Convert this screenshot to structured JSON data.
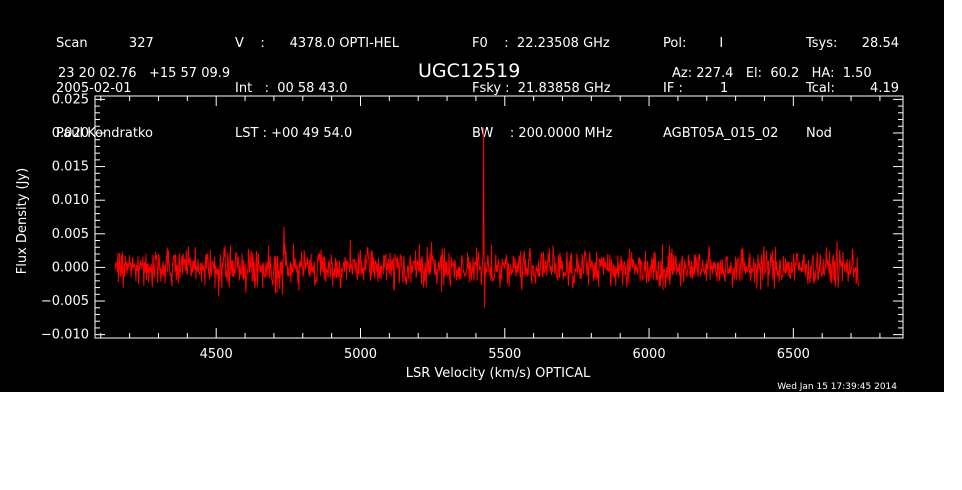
{
  "header": {
    "col1": [
      "Scan          327",
      "2005-02-01",
      "Paul Kondratko"
    ],
    "col2": [
      "V    :      4378.0 OPTI-HEL",
      "Int   :  00 58 43.0",
      "LST : +00 49 54.0"
    ],
    "col3": [
      "F0    :  22.23508 GHz",
      "Fsky :  21.83858 GHz",
      "BW    : 200.0000 MHz"
    ],
    "col4": [
      "Pol:        I",
      "IF :         1",
      "AGBT05A_015_02"
    ],
    "col5": [
      "Tsys:",
      "Tcal:",
      "Nod"
    ],
    "col6": [
      "28.54",
      "4.19",
      ""
    ],
    "coords": "23 20 02.76   +15 57 09.9",
    "source": "UGC12519",
    "pointing": "Az: 227.4   El:  60.2   HA:  1.50",
    "timestamp": "Wed Jan 15 17:39:45 2014"
  },
  "chart_data": {
    "type": "line",
    "xlabel": "LSR Velocity (km/s) OPTICAL",
    "ylabel": "Flux Density (Jy)",
    "xlim": [
      4080,
      6880
    ],
    "ylim": [
      -0.0105,
      0.0255
    ],
    "x_ticks": [
      4500,
      5000,
      5500,
      6000,
      6500
    ],
    "y_ticks": [
      -0.01,
      -0.005,
      0.0,
      0.005,
      0.01,
      0.015,
      0.02,
      0.025
    ],
    "y_tick_labels": [
      "−0.010",
      "−0.005",
      "0.000",
      "0.005",
      "0.010",
      "0.015",
      "0.020",
      "0.025"
    ],
    "series": [
      {
        "color": "#ff0000",
        "x_range": [
          4150,
          6725
        ],
        "rms": 0.0014,
        "features": [
          {
            "x": 5427,
            "y": 0.0208
          },
          {
            "x": 5430,
            "y": -0.006
          },
          {
            "x": 4735,
            "y": 0.006
          },
          {
            "x": 4730,
            "y": -0.004
          }
        ]
      }
    ]
  }
}
